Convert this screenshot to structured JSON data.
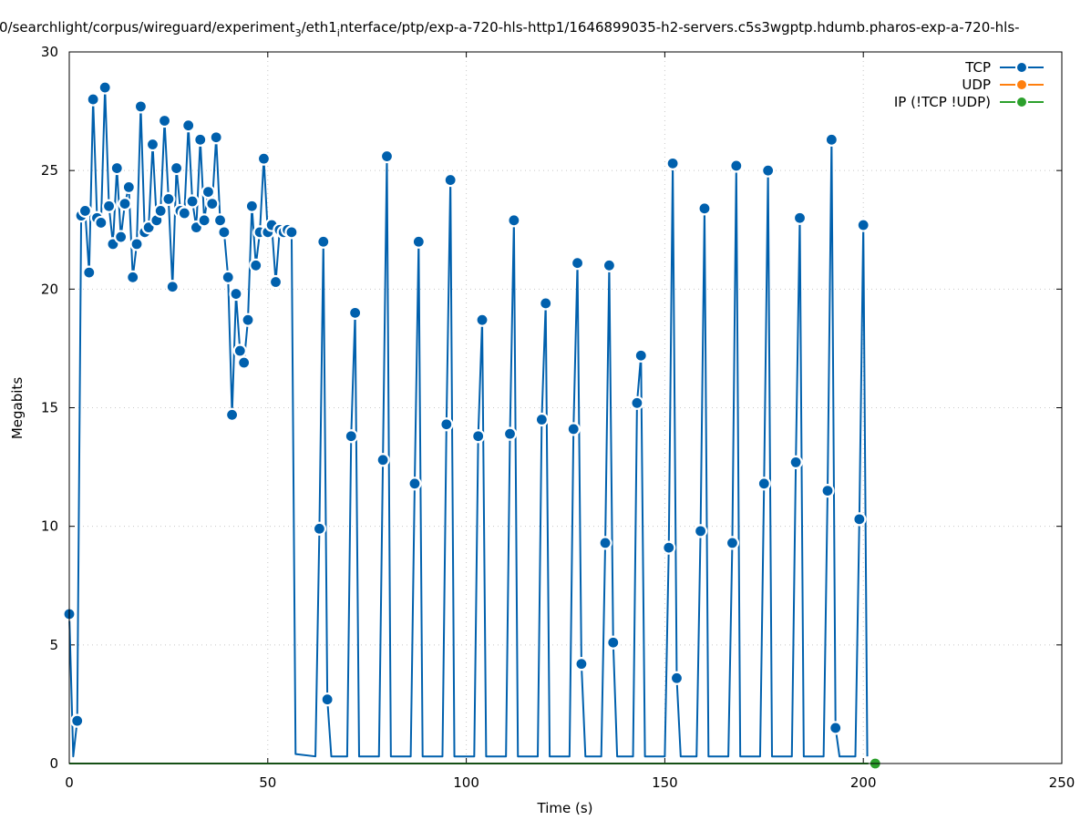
{
  "chart_data": {
    "type": "line",
    "title": "0/searchlight/corpus/wireguard/experiment",
    "title_sub1": "3",
    "title_mid": "/eth1",
    "title_sub2": "i",
    "title_end": "nterface/ptp/exp-a-720-hls-http1/1646899035-h2-servers.c5s3wgptp.hdumb.pharos-exp-a-720-hls-",
    "xlabel": "Time (s)",
    "ylabel": "Megabits",
    "xlim": [
      0,
      250
    ],
    "ylim": [
      0,
      30
    ],
    "xticks": [
      0,
      50,
      100,
      150,
      200,
      250
    ],
    "yticks": [
      0,
      5,
      10,
      15,
      20,
      25,
      30
    ],
    "grid": true,
    "legend_position": "top-right",
    "series": [
      {
        "name": "TCP",
        "color": "#0060ad",
        "points": [
          [
            0,
            6.3
          ],
          [
            1,
            0.3
          ],
          [
            2,
            1.8
          ],
          [
            3,
            23.1
          ],
          [
            4,
            23.3
          ],
          [
            5,
            20.7
          ],
          [
            6,
            28.0
          ],
          [
            7,
            23.0
          ],
          [
            8,
            22.8
          ],
          [
            9,
            28.5
          ],
          [
            10,
            23.5
          ],
          [
            11,
            21.9
          ],
          [
            12,
            25.1
          ],
          [
            13,
            22.2
          ],
          [
            14,
            23.6
          ],
          [
            15,
            24.3
          ],
          [
            16,
            20.5
          ],
          [
            17,
            21.9
          ],
          [
            18,
            27.7
          ],
          [
            19,
            22.4
          ],
          [
            20,
            22.6
          ],
          [
            21,
            26.1
          ],
          [
            22,
            22.9
          ],
          [
            23,
            23.3
          ],
          [
            24,
            27.1
          ],
          [
            25,
            23.8
          ],
          [
            26,
            20.1
          ],
          [
            27,
            25.1
          ],
          [
            28,
            23.3
          ],
          [
            29,
            23.2
          ],
          [
            30,
            26.9
          ],
          [
            31,
            23.7
          ],
          [
            32,
            22.6
          ],
          [
            33,
            26.3
          ],
          [
            34,
            22.9
          ],
          [
            35,
            24.1
          ],
          [
            36,
            23.6
          ],
          [
            37,
            26.4
          ],
          [
            38,
            22.9
          ],
          [
            39,
            22.4
          ],
          [
            40,
            20.5
          ],
          [
            41,
            14.7
          ],
          [
            42,
            19.8
          ],
          [
            43,
            17.4
          ],
          [
            44,
            16.9
          ],
          [
            45,
            18.7
          ],
          [
            46,
            23.5
          ],
          [
            47,
            21.0
          ],
          [
            48,
            22.4
          ],
          [
            49,
            25.5
          ],
          [
            50,
            22.4
          ],
          [
            51,
            22.7
          ],
          [
            52,
            20.3
          ],
          [
            53,
            22.5
          ],
          [
            54,
            22.4
          ],
          [
            55,
            22.5
          ],
          [
            56,
            22.4
          ],
          [
            57,
            0.4
          ],
          [
            62,
            0.3
          ],
          [
            63,
            9.9
          ],
          [
            64,
            22.0
          ],
          [
            65,
            2.7
          ],
          [
            66,
            0.3
          ],
          [
            70,
            0.3
          ],
          [
            71,
            13.8
          ],
          [
            72,
            19.0
          ],
          [
            73,
            0.3
          ],
          [
            78,
            0.3
          ],
          [
            79,
            12.8
          ],
          [
            80,
            25.6
          ],
          [
            81,
            0.3
          ],
          [
            86,
            0.3
          ],
          [
            87,
            11.8
          ],
          [
            88,
            22.0
          ],
          [
            89,
            0.3
          ],
          [
            94,
            0.3
          ],
          [
            95,
            14.3
          ],
          [
            96,
            24.6
          ],
          [
            97,
            0.3
          ],
          [
            102,
            0.3
          ],
          [
            103,
            13.8
          ],
          [
            104,
            18.7
          ],
          [
            105,
            0.3
          ],
          [
            110,
            0.3
          ],
          [
            111,
            13.9
          ],
          [
            112,
            22.9
          ],
          [
            113,
            0.3
          ],
          [
            118,
            0.3
          ],
          [
            119,
            14.5
          ],
          [
            120,
            19.4
          ],
          [
            121,
            0.3
          ],
          [
            126,
            0.3
          ],
          [
            127,
            14.1
          ],
          [
            128,
            21.1
          ],
          [
            129,
            4.2
          ],
          [
            130,
            0.3
          ],
          [
            134,
            0.3
          ],
          [
            135,
            9.3
          ],
          [
            136,
            21.0
          ],
          [
            137,
            5.1
          ],
          [
            138,
            0.3
          ],
          [
            142,
            0.3
          ],
          [
            143,
            15.2
          ],
          [
            144,
            17.2
          ],
          [
            145,
            0.3
          ],
          [
            150,
            0.3
          ],
          [
            151,
            9.1
          ],
          [
            152,
            25.3
          ],
          [
            153,
            3.6
          ],
          [
            154,
            0.3
          ],
          [
            158,
            0.3
          ],
          [
            159,
            9.8
          ],
          [
            160,
            23.4
          ],
          [
            161,
            0.3
          ],
          [
            166,
            0.3
          ],
          [
            167,
            9.3
          ],
          [
            168,
            25.2
          ],
          [
            169,
            0.3
          ],
          [
            174,
            0.3
          ],
          [
            175,
            11.8
          ],
          [
            176,
            25.0
          ],
          [
            177,
            0.3
          ],
          [
            182,
            0.3
          ],
          [
            183,
            12.7
          ],
          [
            184,
            23.0
          ],
          [
            185,
            0.3
          ],
          [
            190,
            0.3
          ],
          [
            191,
            11.5
          ],
          [
            192,
            26.3
          ],
          [
            193,
            1.5
          ],
          [
            194,
            0.3
          ],
          [
            198,
            0.3
          ],
          [
            199,
            10.3
          ],
          [
            200,
            22.7
          ],
          [
            201,
            0.3
          ]
        ],
        "markers": [
          [
            0,
            6.3
          ],
          [
            2,
            1.8
          ],
          [
            3,
            23.1
          ],
          [
            4,
            23.3
          ],
          [
            5,
            20.7
          ],
          [
            6,
            28.0
          ],
          [
            7,
            23.0
          ],
          [
            8,
            22.8
          ],
          [
            9,
            28.5
          ],
          [
            10,
            23.5
          ],
          [
            11,
            21.9
          ],
          [
            12,
            25.1
          ],
          [
            13,
            22.2
          ],
          [
            14,
            23.6
          ],
          [
            15,
            24.3
          ],
          [
            16,
            20.5
          ],
          [
            17,
            21.9
          ],
          [
            18,
            27.7
          ],
          [
            19,
            22.4
          ],
          [
            20,
            22.6
          ],
          [
            21,
            26.1
          ],
          [
            22,
            22.9
          ],
          [
            23,
            23.3
          ],
          [
            24,
            27.1
          ],
          [
            25,
            23.8
          ],
          [
            26,
            20.1
          ],
          [
            27,
            25.1
          ],
          [
            28,
            23.3
          ],
          [
            29,
            23.2
          ],
          [
            30,
            26.9
          ],
          [
            31,
            23.7
          ],
          [
            32,
            22.6
          ],
          [
            33,
            26.3
          ],
          [
            34,
            22.9
          ],
          [
            35,
            24.1
          ],
          [
            36,
            23.6
          ],
          [
            37,
            26.4
          ],
          [
            38,
            22.9
          ],
          [
            39,
            22.4
          ],
          [
            40,
            20.5
          ],
          [
            41,
            14.7
          ],
          [
            42,
            19.8
          ],
          [
            43,
            17.4
          ],
          [
            44,
            16.9
          ],
          [
            45,
            18.7
          ],
          [
            46,
            23.5
          ],
          [
            47,
            21.0
          ],
          [
            48,
            22.4
          ],
          [
            49,
            25.5
          ],
          [
            50,
            22.4
          ],
          [
            51,
            22.7
          ],
          [
            52,
            20.3
          ],
          [
            53,
            22.5
          ],
          [
            54,
            22.4
          ],
          [
            55,
            22.5
          ],
          [
            56,
            22.4
          ],
          [
            63,
            9.9
          ],
          [
            64,
            22.0
          ],
          [
            65,
            2.7
          ],
          [
            71,
            13.8
          ],
          [
            72,
            19.0
          ],
          [
            79,
            12.8
          ],
          [
            80,
            25.6
          ],
          [
            87,
            11.8
          ],
          [
            88,
            22.0
          ],
          [
            95,
            14.3
          ],
          [
            96,
            24.6
          ],
          [
            103,
            13.8
          ],
          [
            104,
            18.7
          ],
          [
            111,
            13.9
          ],
          [
            112,
            22.9
          ],
          [
            119,
            14.5
          ],
          [
            120,
            19.4
          ],
          [
            127,
            14.1
          ],
          [
            128,
            21.1
          ],
          [
            129,
            4.2
          ],
          [
            135,
            9.3
          ],
          [
            136,
            21.0
          ],
          [
            137,
            5.1
          ],
          [
            143,
            15.2
          ],
          [
            144,
            17.2
          ],
          [
            151,
            9.1
          ],
          [
            152,
            25.3
          ],
          [
            153,
            3.6
          ],
          [
            159,
            9.8
          ],
          [
            160,
            23.4
          ],
          [
            167,
            9.3
          ],
          [
            168,
            25.2
          ],
          [
            175,
            11.8
          ],
          [
            176,
            25.0
          ],
          [
            183,
            12.7
          ],
          [
            184,
            23.0
          ],
          [
            191,
            11.5
          ],
          [
            192,
            26.3
          ],
          [
            193,
            1.5
          ],
          [
            199,
            10.3
          ],
          [
            200,
            22.7
          ]
        ]
      },
      {
        "name": "UDP",
        "color": "#ff7f0e",
        "points": [],
        "markers": []
      },
      {
        "name": "IP (!TCP  !UDP)",
        "color": "#2ca02c",
        "points": [
          [
            0,
            0
          ],
          [
            203,
            0
          ]
        ],
        "markers": [
          [
            203,
            0
          ]
        ]
      }
    ]
  }
}
